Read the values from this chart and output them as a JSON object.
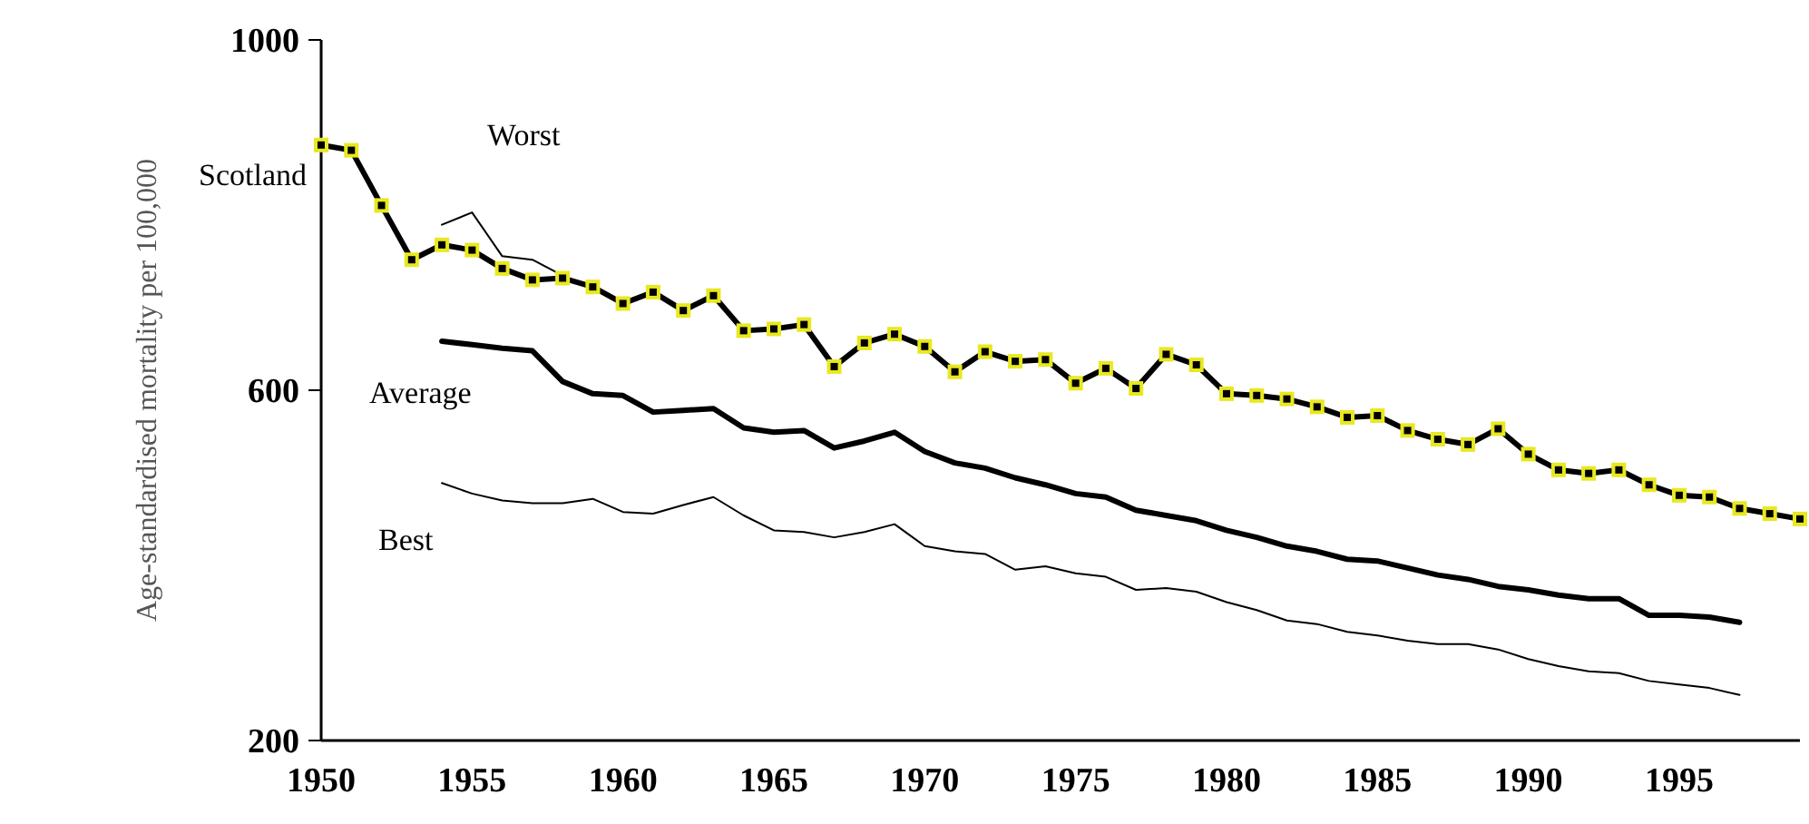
{
  "chart_data": {
    "type": "line",
    "ylabel": "Age-standardised mortality per 100,000",
    "x": [
      1950,
      1951,
      1952,
      1953,
      1954,
      1955,
      1956,
      1957,
      1958,
      1959,
      1960,
      1961,
      1962,
      1963,
      1964,
      1965,
      1966,
      1967,
      1968,
      1969,
      1970,
      1971,
      1972,
      1973,
      1974,
      1975,
      1976,
      1977,
      1978,
      1979,
      1980,
      1981,
      1982,
      1983,
      1984,
      1985,
      1986,
      1987,
      1988,
      1989,
      1990,
      1991,
      1992,
      1993,
      1994,
      1995,
      1996,
      1997,
      1998,
      1999
    ],
    "xlim": [
      1950,
      1999
    ],
    "xticks": [
      1950,
      1955,
      1960,
      1965,
      1970,
      1975,
      1980,
      1985,
      1990,
      1995
    ],
    "ylim": [
      200,
      1000
    ],
    "yticks": [
      200,
      600,
      1000
    ],
    "grid": false,
    "series": [
      {
        "name": "Worst",
        "color": "#000000",
        "marker": "none",
        "values": [
          null,
          null,
          null,
          null,
          789,
          803,
          753,
          749,
          731,
          null,
          null,
          null,
          null,
          null,
          null,
          null,
          null,
          null,
          null,
          null,
          null,
          null,
          null,
          null,
          null,
          null,
          null,
          null,
          null,
          null,
          null,
          null,
          null,
          null,
          null,
          null,
          null,
          null,
          null,
          null,
          null,
          null,
          null,
          null,
          null,
          null,
          null,
          null,
          null,
          null
        ]
      },
      {
        "name": "Scotland",
        "color": "#000000",
        "marker": "square",
        "values": [
          880,
          874,
          811,
          749,
          766,
          760,
          739,
          726,
          728,
          718,
          699,
          712,
          691,
          708,
          668,
          670,
          675,
          627,
          654,
          664,
          650,
          621,
          644,
          633,
          635,
          608,
          625,
          602,
          641,
          629,
          596,
          594,
          590,
          581,
          569,
          571,
          554,
          544,
          538,
          556,
          527,
          509,
          505,
          509,
          492,
          480,
          478,
          465,
          459,
          453
        ]
      },
      {
        "name": "Average",
        "color": "#000000",
        "marker": "none",
        "values": [
          null,
          null,
          null,
          null,
          656,
          652,
          648,
          645,
          610,
          596,
          594,
          575,
          577,
          579,
          557,
          552,
          554,
          534,
          542,
          552,
          530,
          517,
          511,
          500,
          492,
          482,
          478,
          463,
          457,
          451,
          440,
          432,
          422,
          416,
          407,
          405,
          397,
          389,
          384,
          376,
          372,
          366,
          362,
          362,
          343,
          343,
          341,
          335,
          null,
          null
        ]
      },
      {
        "name": "Best",
        "color": "#000000",
        "marker": "none",
        "values": [
          null,
          null,
          null,
          null,
          494,
          482,
          474,
          471,
          471,
          476,
          461,
          459,
          469,
          478,
          457,
          440,
          438,
          432,
          438,
          447,
          422,
          416,
          413,
          395,
          399,
          391,
          387,
          372,
          374,
          370,
          358,
          349,
          337,
          333,
          324,
          320,
          314,
          310,
          310,
          304,
          293,
          285,
          279,
          277,
          268,
          264,
          260,
          252,
          null,
          null
        ]
      }
    ]
  }
}
